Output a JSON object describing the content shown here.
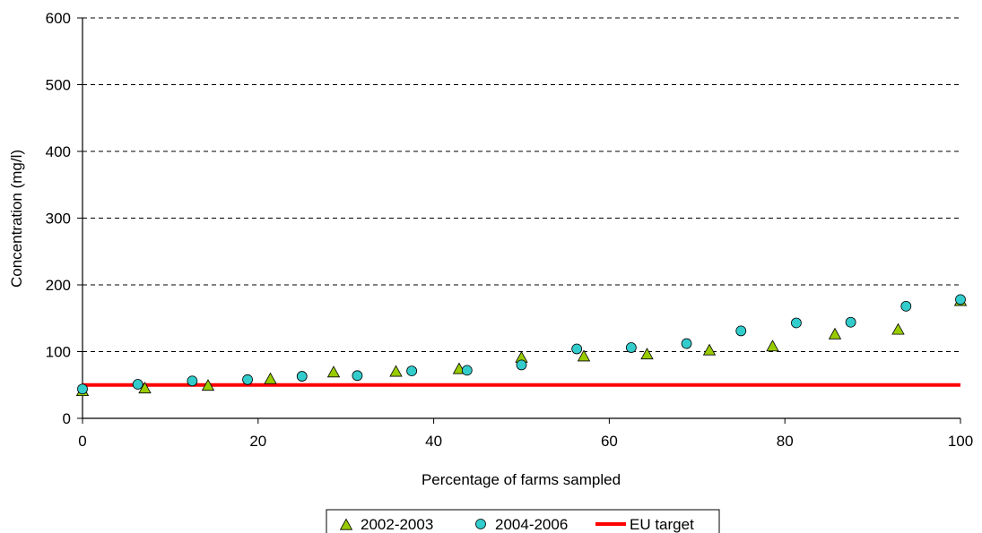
{
  "chart_data": {
    "type": "scatter",
    "title": "",
    "xlabel": "Percentage of farms sampled",
    "ylabel": "Concentration (mg/l)",
    "xlim": [
      0,
      100
    ],
    "ylim": [
      0,
      600
    ],
    "xticks": [
      0,
      20,
      40,
      60,
      80,
      100
    ],
    "yticks": [
      0,
      100,
      200,
      300,
      400,
      500,
      600
    ],
    "grid": "horizontal dashed",
    "legend_position": "bottom",
    "series": [
      {
        "name": "2002-2003",
        "marker": "triangle",
        "color": "#99cc00",
        "points": [
          [
            0,
            41
          ],
          [
            7.1,
            45
          ],
          [
            14.3,
            49
          ],
          [
            21.4,
            59
          ],
          [
            28.6,
            69
          ],
          [
            35.7,
            70
          ],
          [
            42.9,
            74
          ],
          [
            50,
            91
          ],
          [
            57.1,
            93
          ],
          [
            64.3,
            96
          ],
          [
            71.4,
            102
          ],
          [
            78.6,
            108
          ],
          [
            85.7,
            126
          ],
          [
            92.9,
            133
          ],
          [
            100,
            176
          ]
        ]
      },
      {
        "name": "2004-2006",
        "marker": "circle",
        "color": "#33cccc",
        "points": [
          [
            0,
            44
          ],
          [
            6.3,
            51
          ],
          [
            12.5,
            56
          ],
          [
            18.8,
            58
          ],
          [
            25,
            63
          ],
          [
            31.3,
            64
          ],
          [
            37.5,
            71
          ],
          [
            43.8,
            72
          ],
          [
            50,
            80
          ],
          [
            56.3,
            104
          ],
          [
            62.5,
            106
          ],
          [
            68.8,
            112
          ],
          [
            75,
            131
          ],
          [
            81.3,
            143
          ],
          [
            87.5,
            144
          ],
          [
            93.8,
            168
          ],
          [
            100,
            178
          ]
        ]
      },
      {
        "name": "EU target",
        "type": "line",
        "color": "#ff0000",
        "points": [
          [
            0,
            50
          ],
          [
            100,
            50
          ]
        ]
      }
    ]
  }
}
